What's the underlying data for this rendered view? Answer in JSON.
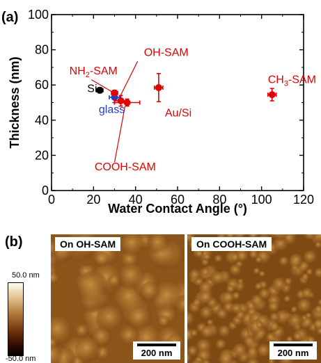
{
  "panels": {
    "a_label": "(a)",
    "b_label": "(b)"
  },
  "chart_data": {
    "type": "scatter",
    "xlabel": "Water Contact Angle (°)",
    "ylabel": "Thickness (nm)",
    "xlim": [
      0,
      120
    ],
    "ylim": [
      0,
      100
    ],
    "xticks": [
      0,
      20,
      40,
      60,
      80,
      100,
      120
    ],
    "yticks": [
      0,
      20,
      40,
      60,
      80,
      100
    ],
    "grid": false,
    "colors": {
      "substrate": "#000000",
      "glass": "#1f3cc8",
      "sam": "#e00000"
    },
    "points": [
      {
        "x": 23,
        "y": 57,
        "xerr": 1.5,
        "yerr": 1.5,
        "color": "#000000"
      },
      {
        "x": 30,
        "y": 53,
        "xerr": 2.5,
        "yerr": 3,
        "color": "#1f3cc8"
      },
      {
        "x": 30,
        "y": 55.5,
        "xerr": 1.5,
        "yerr": 1.5,
        "color": "#e00000"
      },
      {
        "x": 33,
        "y": 51,
        "xerr": 3,
        "yerr": 3,
        "color": "#e00000"
      },
      {
        "x": 36,
        "y": 50,
        "xerr": 6,
        "yerr": 2,
        "color": "#e00000"
      },
      {
        "x": 51,
        "y": 58.5,
        "xerr": 2,
        "yerr": 8,
        "color": "#e00000"
      },
      {
        "x": 105,
        "y": 54.5,
        "xerr": 2,
        "yerr": 3.5,
        "color": "#e00000"
      }
    ],
    "annotations": [
      {
        "text": "Si",
        "x": 17,
        "y": 56,
        "color": "#000000"
      },
      {
        "text": "glass",
        "x": 22.5,
        "y": 44,
        "color": "#1f3cc8"
      },
      {
        "text": "NH",
        "sub": "2",
        "tail": "-SAM",
        "x": 8.5,
        "y": 66,
        "color": "#e00000"
      },
      {
        "text": "OH-SAM",
        "x": 44,
        "y": 76.5,
        "color": "#e00000"
      },
      {
        "text": "Au/Si",
        "x": 54,
        "y": 42,
        "color": "#e00000"
      },
      {
        "text": "CH",
        "sub": "3",
        "tail": "-SAM",
        "x": 103,
        "y": 61,
        "color": "#e00000"
      },
      {
        "text": "COOH-SAM",
        "x": 20.5,
        "y": 11.5,
        "color": "#e00000"
      }
    ]
  },
  "afm": {
    "left_title": "On OH-SAM",
    "right_title": "On COOH-SAM",
    "scale_label": "200 nm",
    "colorbar_max": "50.0 nm",
    "colorbar_min": "-50.0 nm"
  }
}
